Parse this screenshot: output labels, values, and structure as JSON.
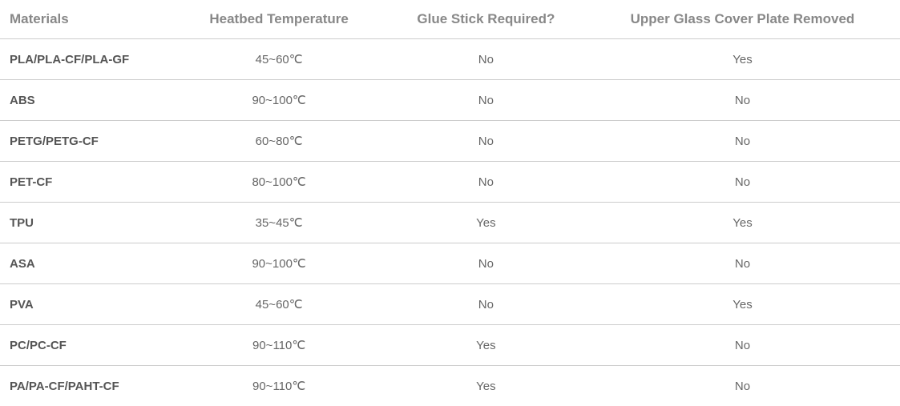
{
  "table": {
    "columns": [
      "Materials",
      "Heatbed Temperature",
      "Glue Stick Required?",
      "Upper Glass Cover Plate Removed"
    ],
    "rows": [
      [
        "PLA/PLA-CF/PLA-GF",
        "45~60℃",
        "No",
        "Yes"
      ],
      [
        "ABS",
        "90~100℃",
        "No",
        "No"
      ],
      [
        "PETG/PETG-CF",
        "60~80℃",
        "No",
        "No"
      ],
      [
        "PET-CF",
        "80~100℃",
        "No",
        "No"
      ],
      [
        "TPU",
        "35~45℃",
        "Yes",
        "Yes"
      ],
      [
        "ASA",
        "90~100℃",
        "No",
        "No"
      ],
      [
        "PVA",
        "45~60℃",
        "No",
        "Yes"
      ],
      [
        "PC/PC-CF",
        "90~110℃",
        "Yes",
        "No"
      ],
      [
        "PA/PA-CF/PAHT-CF",
        "90~110℃",
        "Yes",
        "No"
      ]
    ],
    "column_alignment": [
      "left",
      "center",
      "center",
      "center"
    ],
    "header_text_color": "#888888",
    "header_font_size": 17,
    "header_font_weight": 700,
    "cell_text_color": "#666666",
    "cell_font_size": 15,
    "material_col_font_weight": 700,
    "material_col_text_color": "#555555",
    "border_color": "#cccccc",
    "background_color": "#ffffff"
  }
}
